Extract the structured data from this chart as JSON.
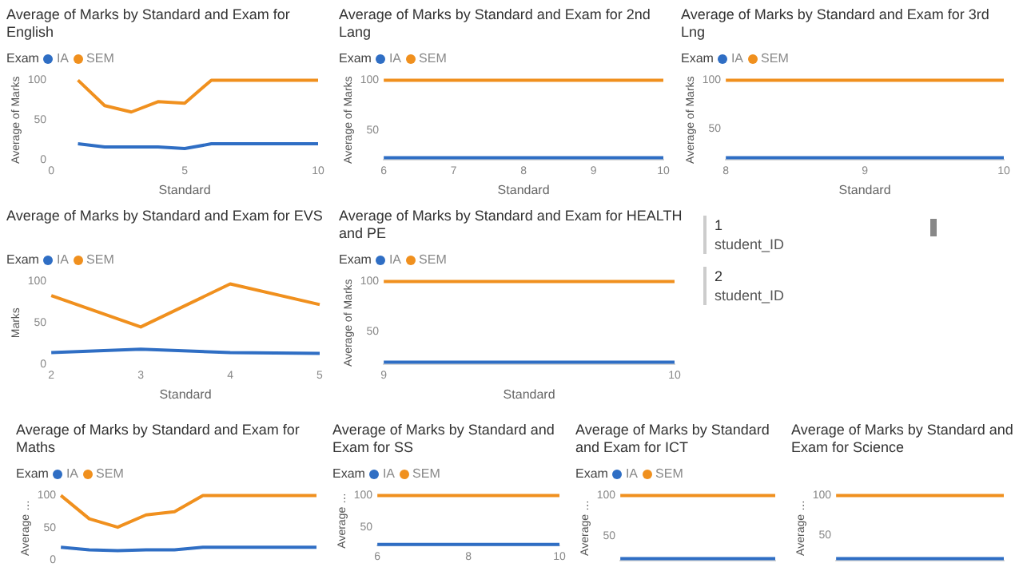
{
  "chart_data": [
    {
      "type": "line",
      "title": "Average of Marks by Standard and Exam for English",
      "legend_title": "Exam",
      "legend": "top left",
      "xlabel": "Standard",
      "ylabel": "Average of Marks",
      "xlim": [
        0,
        10
      ],
      "xticks": [
        0,
        5,
        10
      ],
      "ylim": [
        0,
        100
      ],
      "yticks": [
        0,
        50,
        100
      ],
      "series": [
        {
          "name": "IA",
          "color": "#2f6ec4",
          "x": [
            1,
            2,
            3,
            4,
            5,
            6,
            7,
            8,
            9,
            10
          ],
          "values": [
            20,
            16,
            16,
            16,
            14,
            20,
            20,
            20,
            20,
            20
          ]
        },
        {
          "name": "SEM",
          "color": "#f0901e",
          "x": [
            1,
            2,
            3,
            4,
            5,
            6,
            7,
            8,
            9,
            10
          ],
          "values": [
            100,
            68,
            60,
            73,
            71,
            100,
            100,
            100,
            100,
            100
          ]
        }
      ]
    },
    {
      "type": "line",
      "title": "Average of Marks by Standard and Exam for 2nd Lang",
      "legend_title": "Exam",
      "legend": "top left",
      "xlabel": "Standard",
      "ylabel": "Average of Marks",
      "xlim": [
        6,
        10
      ],
      "xticks": [
        6,
        7,
        8,
        9,
        10
      ],
      "ylim": [
        20,
        100
      ],
      "yticks": [
        50,
        100
      ],
      "series": [
        {
          "name": "IA",
          "color": "#2f6ec4",
          "x": [
            6,
            7,
            8,
            9,
            10
          ],
          "values": [
            22,
            22,
            22,
            22,
            22
          ]
        },
        {
          "name": "SEM",
          "color": "#f0901e",
          "x": [
            6,
            7,
            8,
            9,
            10
          ],
          "values": [
            100,
            100,
            100,
            100,
            100
          ]
        }
      ]
    },
    {
      "type": "line",
      "title": "Average of Marks by Standard and Exam for 3rd Lng",
      "legend_title": "Exam",
      "legend": "top left",
      "xlabel": "Standard",
      "ylabel": "Average of Marks",
      "xlim": [
        8,
        10
      ],
      "xticks": [
        8,
        9,
        10
      ],
      "ylim": [
        18,
        100
      ],
      "yticks": [
        50,
        100
      ],
      "series": [
        {
          "name": "IA",
          "color": "#2f6ec4",
          "x": [
            8,
            9,
            10
          ],
          "values": [
            20,
            20,
            20
          ]
        },
        {
          "name": "SEM",
          "color": "#f0901e",
          "x": [
            8,
            9,
            10
          ],
          "values": [
            100,
            100,
            100
          ]
        }
      ]
    },
    {
      "type": "line",
      "title": "Average of Marks by Standard and Exam for EVS",
      "legend_title": "Exam",
      "legend": "top left",
      "xlabel": "Standard",
      "ylabel": "Marks",
      "xlim": [
        2,
        5
      ],
      "xticks": [
        2,
        3,
        4,
        5
      ],
      "ylim": [
        0,
        100
      ],
      "yticks": [
        0,
        50,
        100
      ],
      "series": [
        {
          "name": "IA",
          "color": "#2f6ec4",
          "x": [
            2,
            3,
            4,
            5
          ],
          "values": [
            14,
            18,
            14,
            13
          ]
        },
        {
          "name": "SEM",
          "color": "#f0901e",
          "x": [
            2,
            3,
            4,
            5
          ],
          "values": [
            83,
            45,
            97,
            72
          ]
        }
      ]
    },
    {
      "type": "line",
      "title": "Average of Marks by Standard and Exam for HEALTH and PE",
      "legend_title": "Exam",
      "legend": "top left",
      "xlabel": "Standard",
      "ylabel": "Average of Marks",
      "xlim": [
        9,
        10
      ],
      "xticks": [
        9,
        10
      ],
      "ylim": [
        18,
        100
      ],
      "yticks": [
        50,
        100
      ],
      "series": [
        {
          "name": "IA",
          "color": "#2f6ec4",
          "x": [
            9,
            10
          ],
          "values": [
            20,
            20
          ]
        },
        {
          "name": "SEM",
          "color": "#f0901e",
          "x": [
            9,
            10
          ],
          "values": [
            100,
            100
          ]
        }
      ]
    },
    {
      "type": "other",
      "annotations": [
        "1",
        "student_ID",
        "2",
        "student_ID"
      ]
    },
    {
      "type": "line",
      "title": "Average of Marks by Standard and Exam for Maths",
      "legend_title": "Exam",
      "legend": "top left",
      "ylabel": "Average …",
      "tick_labels": "y",
      "categories": [
        null,
        null,
        null,
        null,
        null,
        null,
        null,
        null,
        null,
        null
      ],
      "ylim": [
        0,
        100
      ],
      "yticks": [
        0,
        50,
        100
      ],
      "series": [
        {
          "name": "IA",
          "color": "#2f6ec4",
          "values": [
            20,
            16,
            15,
            16,
            16,
            20,
            20,
            20,
            20,
            20
          ]
        },
        {
          "name": "SEM",
          "color": "#f0901e",
          "values": [
            100,
            64,
            51,
            70,
            75,
            100,
            100,
            100,
            100,
            100
          ]
        }
      ]
    },
    {
      "type": "line",
      "title": "Average of Marks by Standard and Exam for SS",
      "legend_title": "Exam",
      "legend": "top left",
      "ylabel": "Average …",
      "xlim": [
        6,
        10
      ],
      "xticks": [
        6,
        8,
        10
      ],
      "ylim": [
        20,
        100
      ],
      "yticks": [
        50,
        100
      ],
      "series": [
        {
          "name": "IA",
          "color": "#2f6ec4",
          "x": [
            6,
            7,
            8,
            9,
            10
          ],
          "values": [
            22,
            22,
            22,
            22,
            22
          ]
        },
        {
          "name": "SEM",
          "color": "#f0901e",
          "x": [
            6,
            7,
            8,
            9,
            10
          ],
          "values": [
            100,
            100,
            100,
            100,
            100
          ]
        }
      ]
    },
    {
      "type": "line",
      "title": "Average of Marks by Standard and Exam for ICT",
      "legend_title": "Exam",
      "legend": "top left",
      "ylabel": "Average …",
      "tick_labels": "y",
      "categories": [
        null,
        null,
        null,
        null,
        null
      ],
      "ylim": [
        20,
        100
      ],
      "yticks": [
        50,
        100
      ],
      "series": [
        {
          "name": "IA",
          "color": "#2f6ec4",
          "values": [
            22,
            22,
            22,
            22,
            22
          ]
        },
        {
          "name": "SEM",
          "color": "#f0901e",
          "values": [
            100,
            100,
            100,
            100,
            100
          ]
        }
      ]
    },
    {
      "type": "line",
      "title": "Average of Marks by Standard and Exam for Science",
      "ylabel": "Average …",
      "tick_labels": "y",
      "categories": [
        null,
        null,
        null,
        null,
        null
      ],
      "ylim": [
        18,
        100
      ],
      "yticks": [
        50,
        100
      ],
      "series": [
        {
          "color": "#2f6ec4",
          "values": [
            20,
            20,
            20,
            20,
            20
          ]
        },
        {
          "color": "#f0901e",
          "values": [
            100,
            100,
            100,
            100,
            100
          ]
        }
      ]
    }
  ]
}
